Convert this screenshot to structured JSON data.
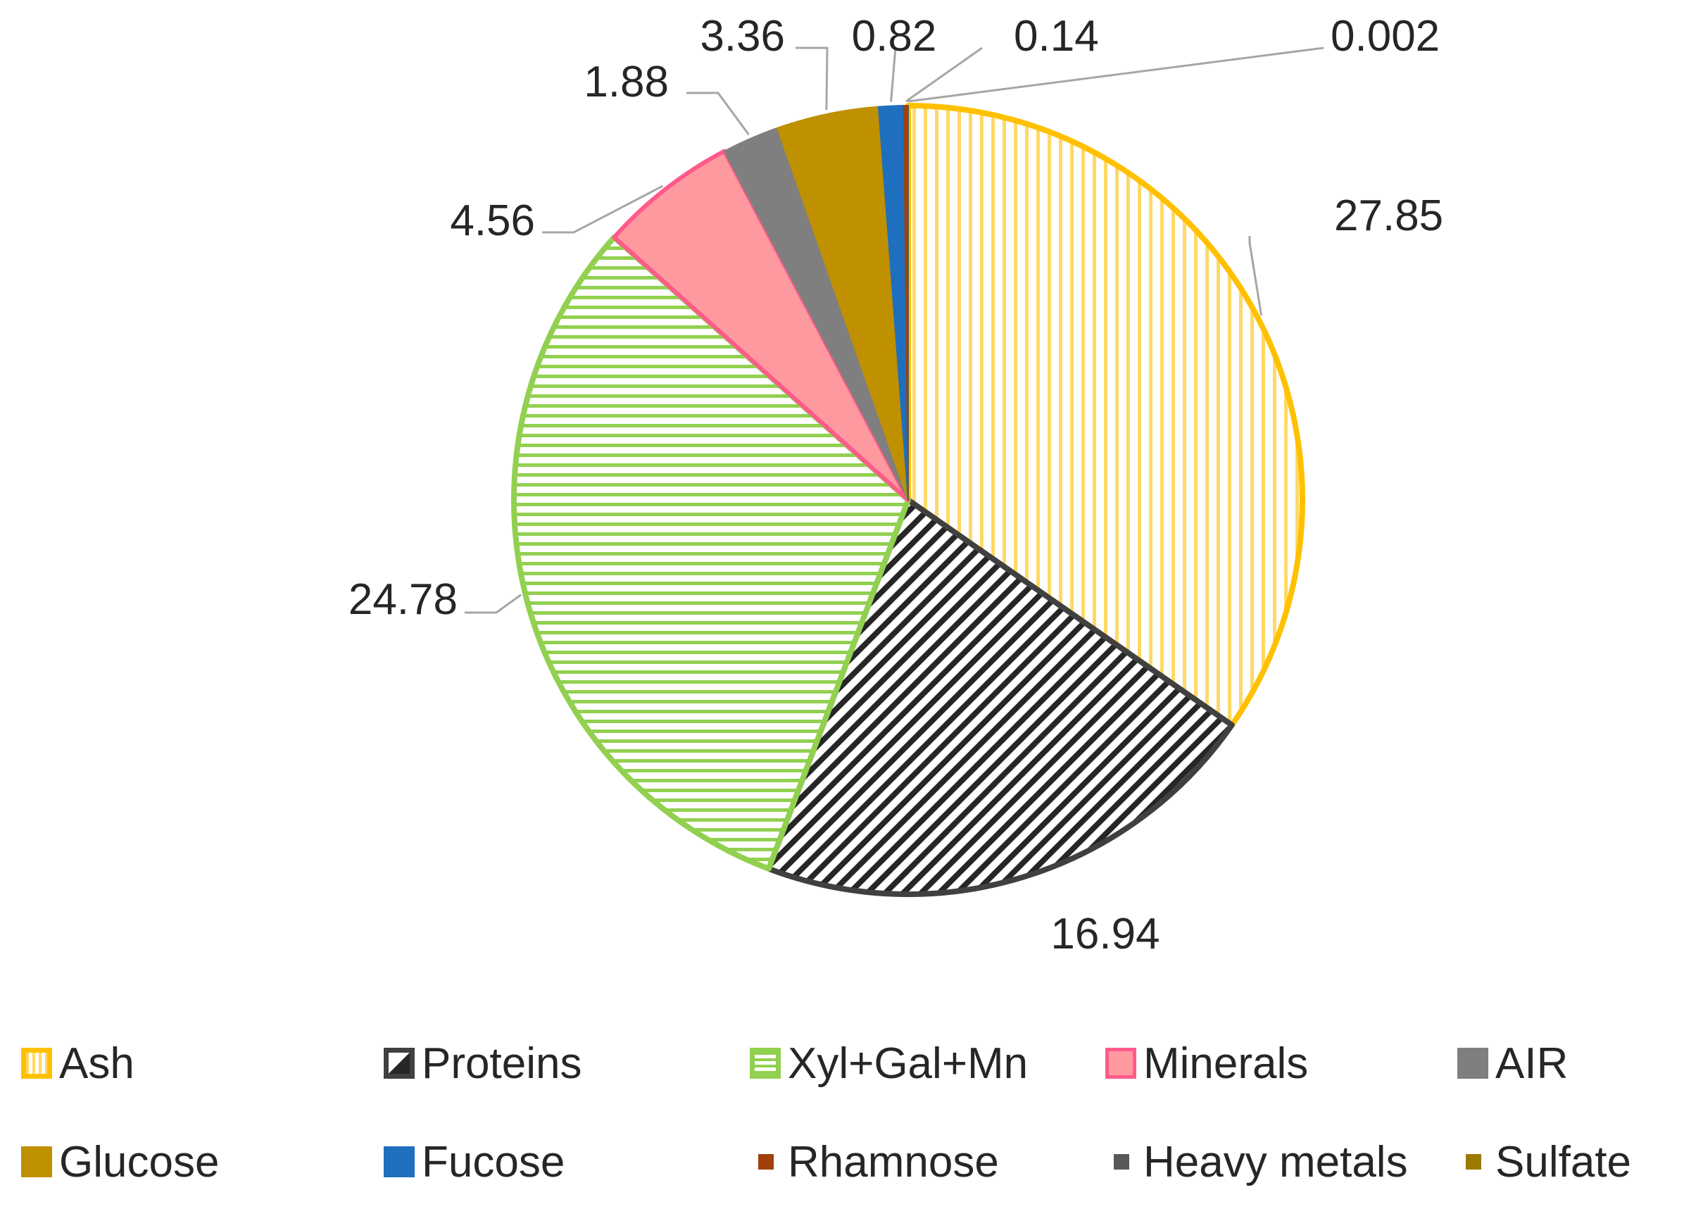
{
  "chart_data": {
    "type": "pie",
    "title": "",
    "slices": [
      {
        "label": "Ash",
        "value": 27.85,
        "data_label": "27.85",
        "color": "#FFC000",
        "pattern": "vertical-stripes"
      },
      {
        "label": "Proteins",
        "value": 16.94,
        "data_label": "16.94",
        "color": "#404040",
        "pattern": "diagonal-stripes"
      },
      {
        "label": "Xyl+Gal+Mn",
        "value": 24.78,
        "data_label": "24.78",
        "color": "#92D050",
        "pattern": "horizontal-stripes"
      },
      {
        "label": "Minerals",
        "value": 4.56,
        "data_label": "4.56",
        "color": "#FF99A0",
        "border": "#FF5A8A",
        "pattern": "solid"
      },
      {
        "label": "AIR",
        "value": 1.88,
        "data_label": "1.88",
        "color": "#7F7F7F",
        "pattern": "solid"
      },
      {
        "label": "Glucose",
        "value": 3.36,
        "data_label": "3.36",
        "color": "#BF9000",
        "pattern": "solid"
      },
      {
        "label": "Fucose",
        "value": 0.82,
        "data_label": "0.82",
        "color": "#1F6FBF",
        "pattern": "solid"
      },
      {
        "label": "Rhamnose",
        "value": 0.14,
        "data_label": "0.14",
        "color": "#A0410D",
        "pattern": "solid"
      },
      {
        "label": "Heavy metals",
        "value": 0.002,
        "data_label": "0.002",
        "color": "#595959",
        "pattern": "solid"
      },
      {
        "label": "Sulfate",
        "value": 0,
        "data_label": "",
        "color": "#9C7A00",
        "pattern": "solid"
      }
    ],
    "legend_placement": "bottom"
  }
}
